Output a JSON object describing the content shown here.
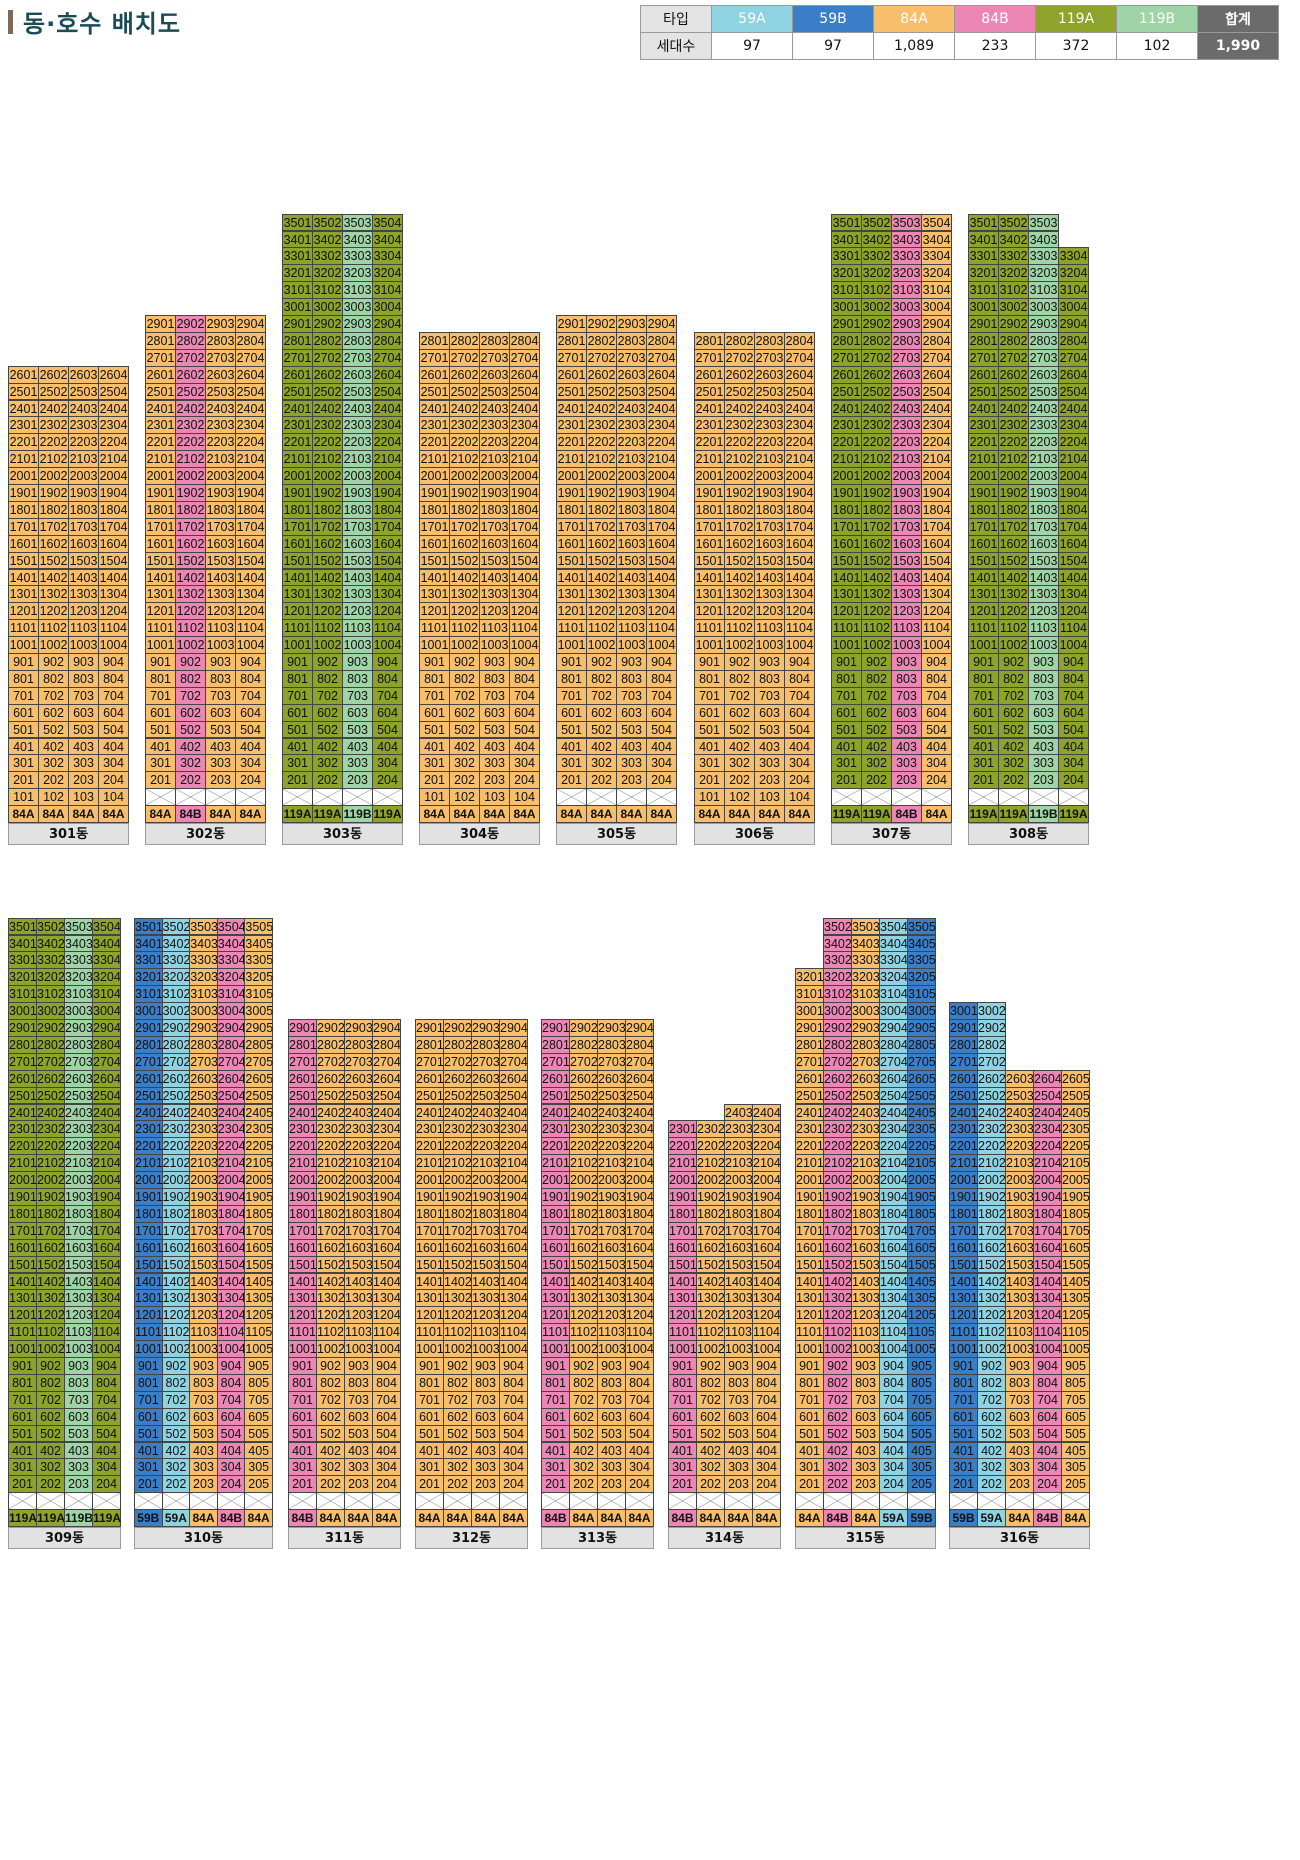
{
  "page": {
    "title": "동·호수 배치도"
  },
  "colors": {
    "59A": "#8fd3e3",
    "59B": "#3b7ec8",
    "84A": "#f7bf6c",
    "84B": "#ec86b5",
    "119A": "#8ea32a",
    "119B": "#9fd4a6"
  },
  "legend": {
    "row1_header": "타입",
    "row2_header": "세대수",
    "types": [
      {
        "name": "59A",
        "count": "97"
      },
      {
        "name": "59B",
        "count": "97"
      },
      {
        "name": "84A",
        "count": "1,089"
      },
      {
        "name": "84B",
        "count": "233"
      },
      {
        "name": "119A",
        "count": "372"
      },
      {
        "name": "119B",
        "count": "102"
      }
    ],
    "total_label": "합계",
    "total_count": "1,990"
  },
  "buildings": [
    {
      "name": "301동",
      "floors": 26,
      "lines": [
        "84A",
        "84A",
        "84A",
        "84A"
      ],
      "piloti": []
    },
    {
      "name": "302동",
      "floors": 29,
      "lines": [
        "84A",
        "84B",
        "84A",
        "84A"
      ],
      "piloti": [
        1
      ]
    },
    {
      "name": "303동",
      "floors": 35,
      "lines": [
        "119A",
        "119A",
        "119B",
        "119A"
      ],
      "piloti": [
        1
      ]
    },
    {
      "name": "304동",
      "floors": 28,
      "lines": [
        "84A",
        "84A",
        "84A",
        "84A"
      ],
      "piloti": []
    },
    {
      "name": "305동",
      "floors": 29,
      "lines": [
        "84A",
        "84A",
        "84A",
        "84A"
      ],
      "piloti": [
        1
      ]
    },
    {
      "name": "306동",
      "floors": 28,
      "lines": [
        "84A",
        "84A",
        "84A",
        "84A"
      ],
      "piloti": []
    },
    {
      "name": "307동",
      "floors": 35,
      "lines": [
        "119A",
        "119A",
        "84B",
        "84A"
      ],
      "piloti": [
        1
      ]
    },
    {
      "name": "308동",
      "floors": 35,
      "lines": [
        "119A",
        "119A",
        "119B",
        "119A"
      ],
      "piloti": [
        1
      ],
      "top_missing": {
        "4": [
          35,
          34
        ]
      }
    },
    {
      "name": "309동",
      "floors": 35,
      "lines": [
        "119A",
        "119A",
        "119B",
        "119A"
      ],
      "piloti": [
        1
      ]
    },
    {
      "name": "310동",
      "floors": 35,
      "lines": [
        "59B",
        "59A",
        "84A",
        "84B",
        "84A"
      ],
      "piloti": [
        1
      ]
    },
    {
      "name": "311동",
      "floors": 29,
      "lines": [
        "84B",
        "84A",
        "84A",
        "84A"
      ],
      "piloti": [
        1
      ]
    },
    {
      "name": "312동",
      "floors": 29,
      "lines": [
        "84A",
        "84A",
        "84A",
        "84A"
      ],
      "piloti": [
        1
      ]
    },
    {
      "name": "313동",
      "floors": 29,
      "lines": [
        "84B",
        "84A",
        "84A",
        "84A"
      ],
      "piloti": [
        1
      ]
    },
    {
      "name": "314동",
      "floors": 24,
      "lines": [
        "84B",
        "84A",
        "84A",
        "84A"
      ],
      "piloti": [
        1
      ],
      "top_missing": {
        "1": [
          24
        ],
        "2": [
          24
        ]
      }
    },
    {
      "name": "315동",
      "floors": 35,
      "lines": [
        "84A",
        "84B",
        "84A",
        "59A",
        "59B"
      ],
      "piloti": [
        1
      ],
      "top_missing": {
        "1": [
          35,
          34,
          33
        ]
      }
    },
    {
      "name": "316동",
      "floors": 30,
      "lines": [
        "59B",
        "59A",
        "84A",
        "84B",
        "84A"
      ],
      "piloti": [
        1
      ],
      "top_missing": {
        "3": [
          30,
          29,
          28,
          27
        ],
        "4": [
          30,
          29,
          28,
          27
        ],
        "5": [
          30,
          29,
          28,
          27
        ]
      }
    }
  ]
}
